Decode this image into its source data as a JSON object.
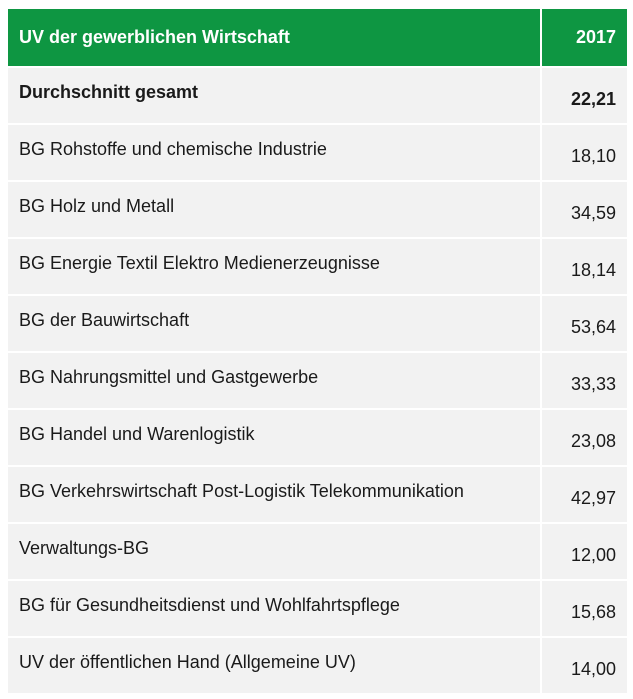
{
  "table": {
    "header": {
      "label": "UV der gewerblichen Wirtschaft",
      "year": "2017"
    },
    "rows": [
      {
        "label": "Durchschnitt gesamt",
        "value": "22,21",
        "total": true
      },
      {
        "label": "BG Rohstoffe und chemische Industrie",
        "value": "18,10"
      },
      {
        "label": "BG Holz und Metall",
        "value": "34,59"
      },
      {
        "label": "BG Energie Textil Elektro Medienerzeugnisse",
        "value": "18,14"
      },
      {
        "label": "BG der Bauwirtschaft",
        "value": "53,64"
      },
      {
        "label": "BG Nahrungsmittel und Gastgewerbe",
        "value": "33,33"
      },
      {
        "label": "BG Handel und Warenlogistik",
        "value": "23,08"
      },
      {
        "label": "BG Verkehrswirtschaft Post-Logistik Telekommunikation",
        "value": "42,97"
      },
      {
        "label": "Verwaltungs-BG",
        "value": "12,00"
      },
      {
        "label": "BG für Gesundheitsdienst und Wohlfahrtspflege",
        "value": "15,68"
      },
      {
        "label": "UV der öffentlichen Hand (Allgemeine UV)",
        "value": "14,00"
      }
    ]
  },
  "colors": {
    "header_bg": "#0e9642",
    "header_text": "#ffffff",
    "row_bg": "#f2f2f2",
    "row_text": "#1a1a1a"
  }
}
